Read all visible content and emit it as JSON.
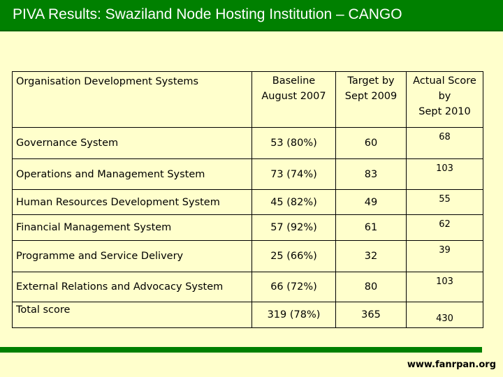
{
  "title": "PIVA Results: Swaziland Node Hosting Institution – CANGO",
  "table": {
    "headers": {
      "col1": "Organisation Development Systems",
      "col2_line1": "Baseline",
      "col2_line2": "August 2007",
      "col3_line1": "Target by",
      "col3_line2": "Sept 2009",
      "col4_line1": "Actual Score",
      "col4_line2": "by",
      "col4_line3": "Sept 2010"
    },
    "rows": [
      {
        "name": "Governance System",
        "baseline": "53 (80%)",
        "target": "60",
        "actual": "68"
      },
      {
        "name": "Operations and Management System",
        "baseline": "73 (74%)",
        "target": "83",
        "actual": "103"
      },
      {
        "name": "Human Resources Development System",
        "baseline": "45 (82%)",
        "target": "49",
        "actual": "55"
      },
      {
        "name": "Financial Management System",
        "baseline": "57 (92%)",
        "target": "61",
        "actual": "62"
      },
      {
        "name": "Programme and Service Delivery",
        "baseline": "25 (66%)",
        "target": "32",
        "actual": "39"
      },
      {
        "name": "External Relations and Advocacy System",
        "baseline": "66 (72%)",
        "target": "80",
        "actual": "103"
      }
    ],
    "total": {
      "name": "Total score",
      "baseline": "319 (78%)",
      "target": "365",
      "actual": "430"
    }
  },
  "footer": {
    "link": "www.fanrpan.org"
  },
  "colors": {
    "title_bg": "#008000",
    "page_bg": "#ffffcc",
    "footer_bar": "#008000"
  }
}
